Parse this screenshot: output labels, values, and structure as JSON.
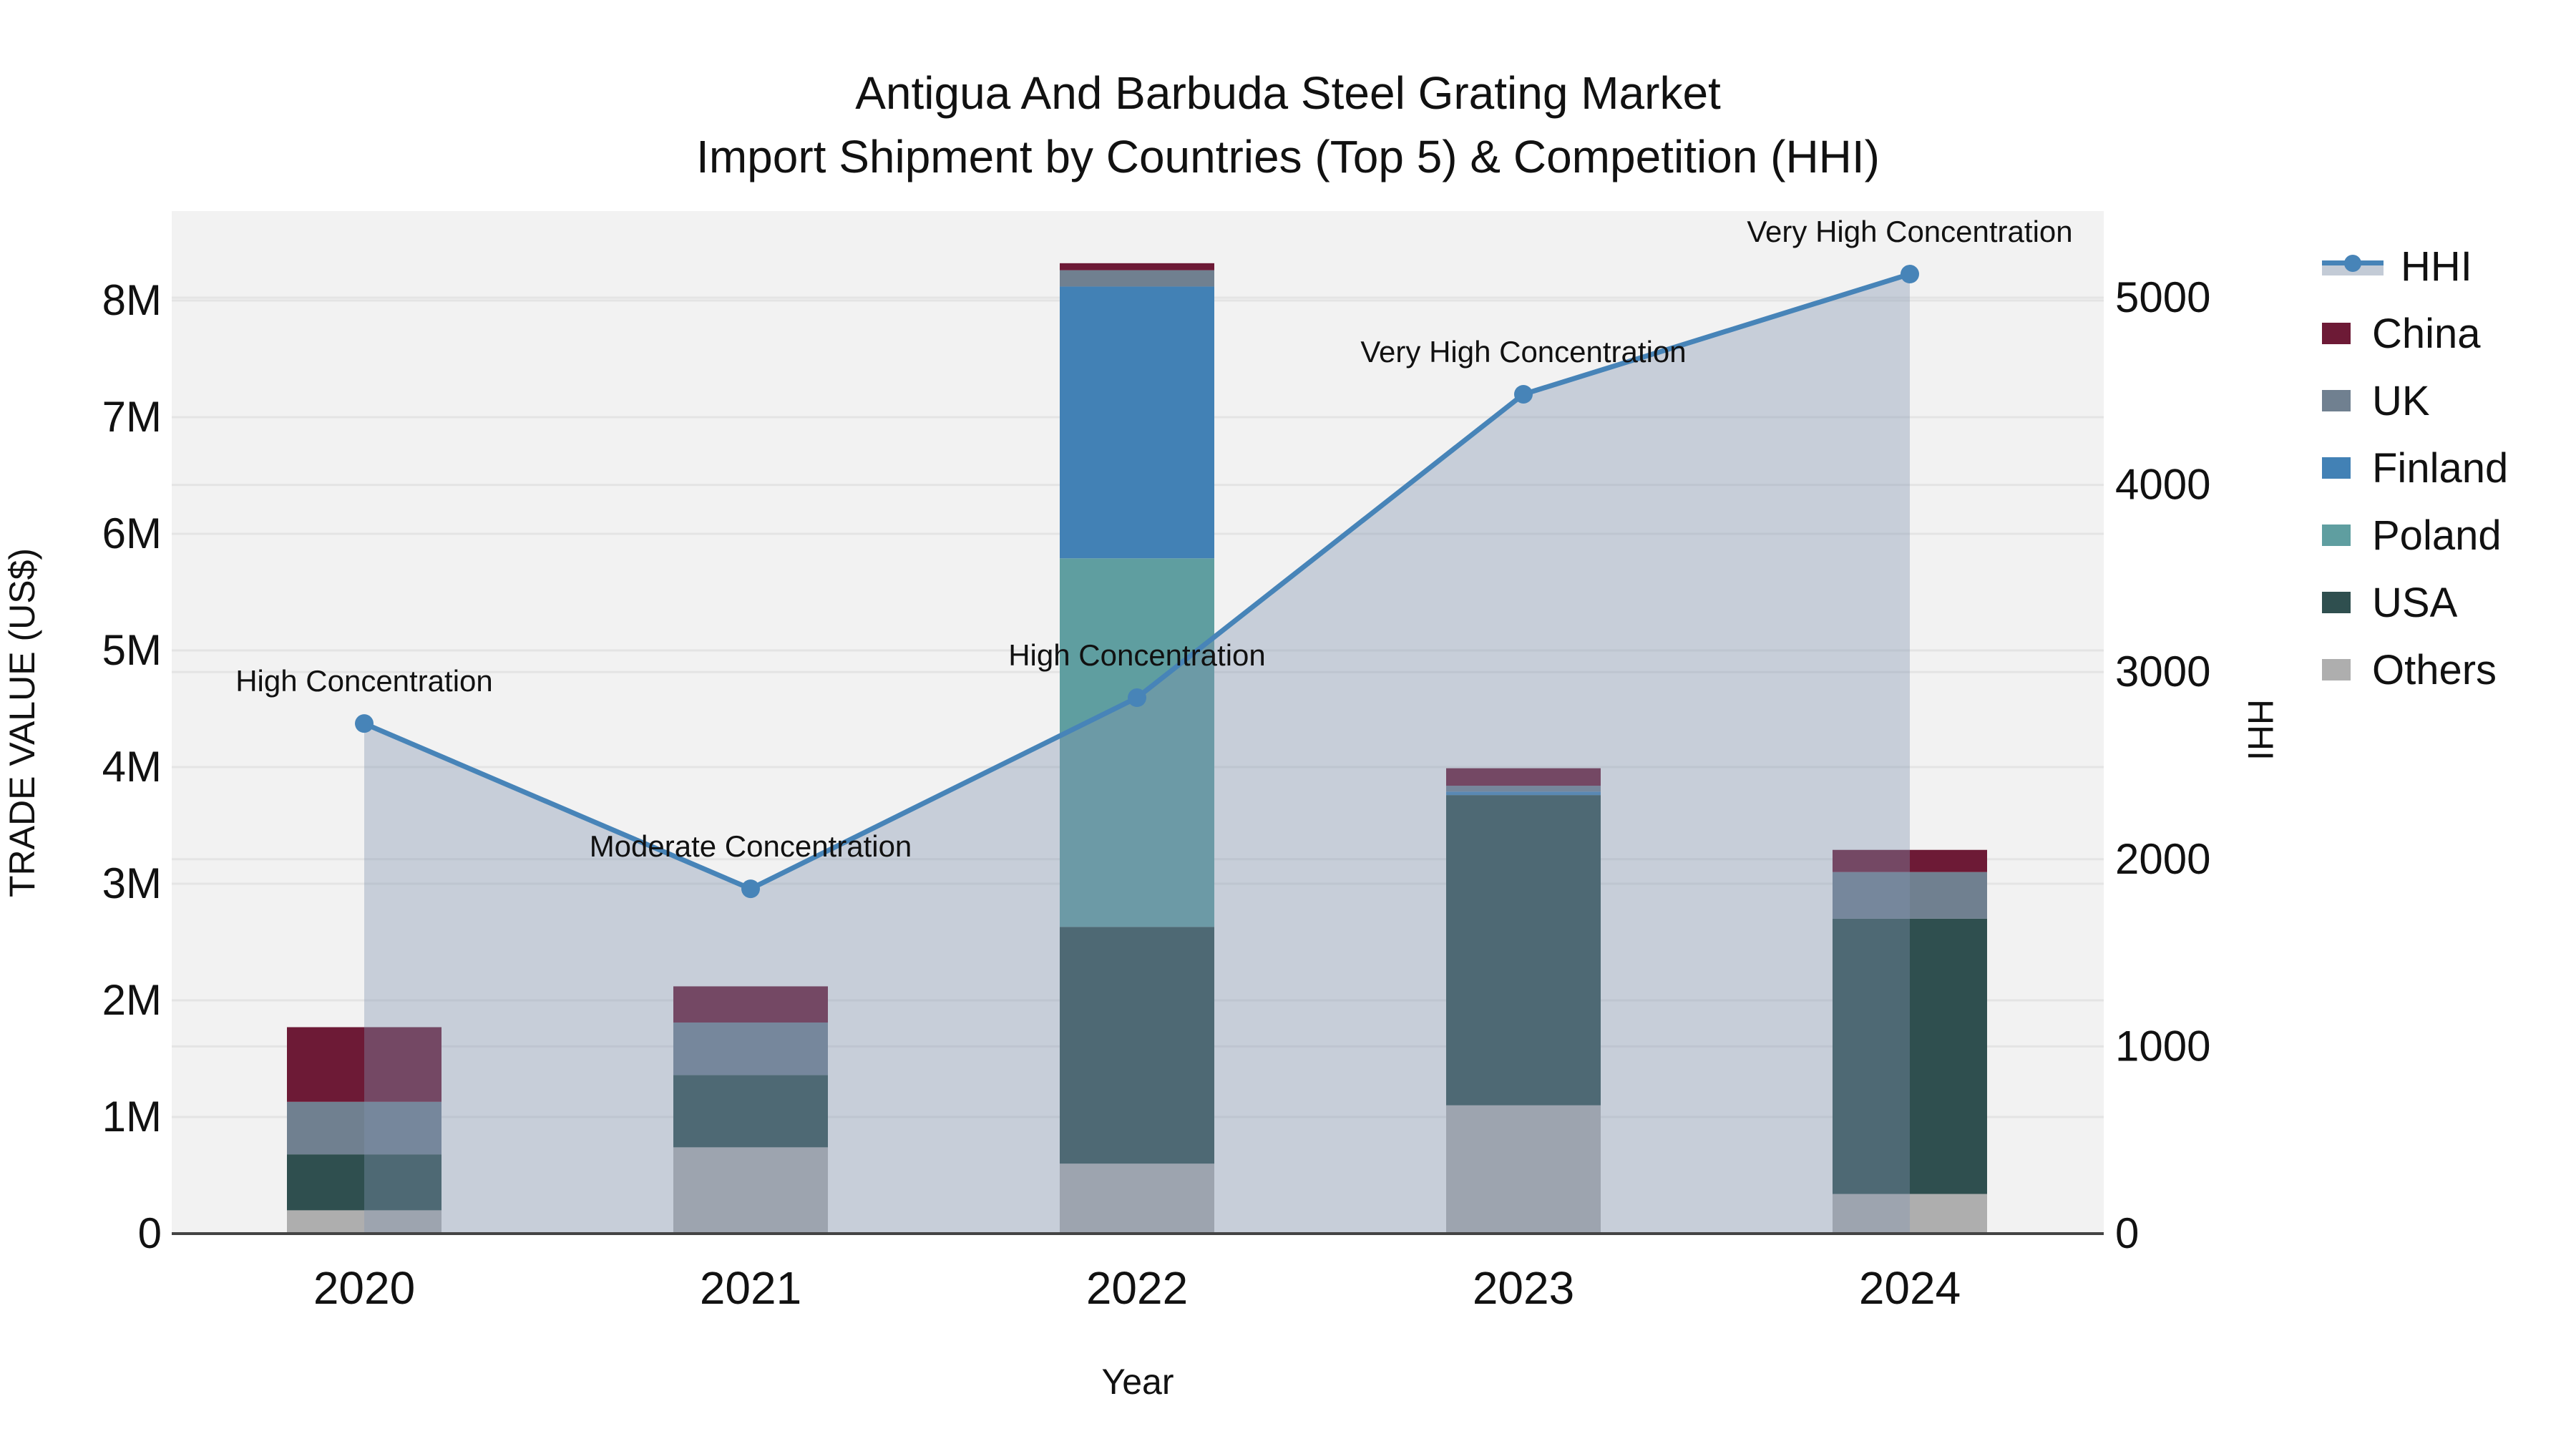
{
  "title": {
    "line1": "Antigua And Barbuda Steel Grating Market",
    "line2": "Import Shipment by Countries (Top 5) & Competition (HHI)"
  },
  "axes": {
    "left": {
      "title": "TRADE VALUE (US$)",
      "tick_labels": [
        "0",
        "1M",
        "2M",
        "3M",
        "4M",
        "5M",
        "6M",
        "7M",
        "8M"
      ]
    },
    "right": {
      "title": "HHI",
      "tick_labels": [
        "0",
        "1000",
        "2000",
        "3000",
        "4000",
        "5000"
      ]
    },
    "x": {
      "title": "Year"
    }
  },
  "legend": {
    "items": [
      {
        "label": "HHI",
        "type": "line",
        "color": "#4784b8"
      },
      {
        "label": "China",
        "type": "bar",
        "color": "#6d1a36"
      },
      {
        "label": "UK",
        "type": "bar",
        "color": "#708090"
      },
      {
        "label": "Finland",
        "type": "bar",
        "color": "#4281b5"
      },
      {
        "label": "Poland",
        "type": "bar",
        "color": "#5f9ea0"
      },
      {
        "label": "USA",
        "type": "bar",
        "color": "#2f4f4f"
      },
      {
        "label": "Others",
        "type": "bar",
        "color": "#aeaeae"
      }
    ]
  },
  "chart_data": {
    "type": "bar+line",
    "categories": [
      "2020",
      "2021",
      "2022",
      "2023",
      "2024"
    ],
    "values_unit": "millions US$",
    "series": [
      {
        "name": "China",
        "color": "#6d1a36",
        "values": [
          0.64,
          0.31,
          0.06,
          0.15,
          0.19
        ]
      },
      {
        "name": "UK",
        "color": "#708090",
        "values": [
          0.45,
          0.45,
          0.14,
          0.05,
          0.4
        ]
      },
      {
        "name": "Finland",
        "color": "#4281b5",
        "values": [
          0.0,
          0.0,
          2.33,
          0.03,
          0.0
        ]
      },
      {
        "name": "Poland",
        "color": "#5f9ea0",
        "values": [
          0.0,
          0.0,
          3.16,
          0.0,
          0.0
        ]
      },
      {
        "name": "USA",
        "color": "#2f4f4f",
        "values": [
          0.48,
          0.62,
          2.03,
          2.66,
          2.36
        ]
      },
      {
        "name": "Others",
        "color": "#aeaeae",
        "values": [
          0.2,
          0.74,
          0.6,
          1.1,
          0.34
        ]
      }
    ],
    "stack_order": [
      "Others",
      "USA",
      "Poland",
      "Finland",
      "UK",
      "China"
    ],
    "bar_totals": [
      1.77,
      2.12,
      8.32,
      3.99,
      3.29
    ],
    "hhi": {
      "name": "HHI",
      "values": [
        2725,
        1842,
        2863,
        4484,
        5126
      ],
      "annotations": [
        "High Concentration",
        "Moderate Concentration",
        "High Concentration",
        "Very High Concentration",
        "Very High Concentration"
      ],
      "line_color": "#4784b8",
      "fill_color": "rgba(130,146,175,0.38)"
    },
    "left_axis": {
      "ticks": [
        0,
        1,
        2,
        3,
        4,
        5,
        6,
        7,
        8
      ],
      "unit": "M",
      "range": [
        0,
        8.77
      ]
    },
    "right_axis": {
      "ticks": [
        0,
        1000,
        2000,
        3000,
        4000,
        5000
      ],
      "range": [
        0,
        5460
      ]
    },
    "grid": true,
    "legend_position": "right",
    "plot_background": "#f2f2f2",
    "grid_color": "#e4e4e4",
    "axis_line_color": "#444444"
  }
}
